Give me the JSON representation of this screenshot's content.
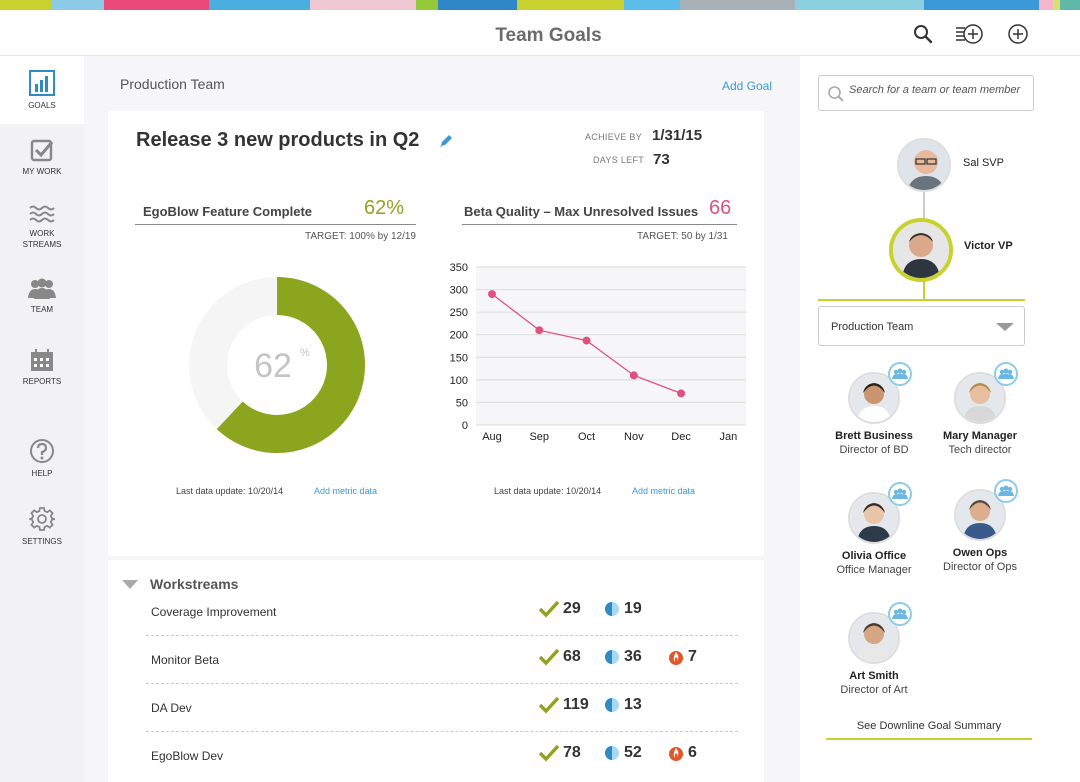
{
  "header": {
    "title": "Team Goals",
    "stripe_colors": [
      "#c7d22f",
      "#8ccbe8",
      "#e84a7a",
      "#4aaee0",
      "#f0c8d4",
      "#96c83c",
      "#2e88c8",
      "#c7d22f",
      "#5cbde8",
      "#a8b0b8",
      "#8cd0e0",
      "#3a9ad9",
      "#f4b6cc",
      "#d8e070",
      "#60b8a8"
    ]
  },
  "sidebar": {
    "items": [
      {
        "label": "GOALS",
        "icon": "bar-chart-icon"
      },
      {
        "label": "MY WORK",
        "icon": "checkbox-icon"
      },
      {
        "label": "WORK STREAMS",
        "icon": "waves-icon"
      },
      {
        "label": "TEAM",
        "icon": "people-icon"
      },
      {
        "label": "REPORTS",
        "icon": "calendar-icon"
      },
      {
        "label": "HELP",
        "icon": "question-icon"
      },
      {
        "label": "SETTINGS",
        "icon": "gear-icon"
      }
    ]
  },
  "main": {
    "team_name": "Production Team",
    "add_goal": "Add Goal",
    "goal": {
      "title": "Release 3 new products in Q2",
      "achieve_by_label": "ACHIEVE BY",
      "achieve_by": "1/31/15",
      "days_left_label": "DAYS LEFT",
      "days_left": "73"
    },
    "metric1": {
      "name": "EgoBlow Feature Complete",
      "pct": "62%",
      "target": "TARGET: 100% by 12/19",
      "center_value": "62",
      "center_unit": "%",
      "progress": 0.62,
      "color": "#8ca51e",
      "last_update": "Last data update: 10/20/14",
      "add_link": "Add metric data"
    },
    "metric2": {
      "name": "Beta Quality – Max Unresolved Issues",
      "value": "66",
      "target": "TARGET: 50 by 1/31",
      "color": "#e0527e",
      "last_update": "Last data update: 10/20/14",
      "add_link": "Add metric data"
    },
    "workstreams": {
      "title": "Workstreams",
      "rows": [
        {
          "name": "Coverage Improvement",
          "done": "29",
          "progress": "19",
          "issues": ""
        },
        {
          "name": "Monitor Beta",
          "done": "68",
          "progress": "36",
          "issues": "7"
        },
        {
          "name": "DA Dev",
          "done": "119",
          "progress": "13",
          "issues": ""
        },
        {
          "name": "EgoBlow Dev",
          "done": "78",
          "progress": "52",
          "issues": "6"
        }
      ]
    }
  },
  "chart_data": {
    "type": "line",
    "categories": [
      "Aug",
      "Sep",
      "Oct",
      "Nov",
      "Dec",
      "Jan"
    ],
    "values": [
      290,
      210,
      187,
      110,
      70,
      null
    ],
    "yticks": [
      0,
      50,
      100,
      150,
      200,
      250,
      300,
      350
    ],
    "ylim": [
      0,
      350
    ],
    "grid": true,
    "color": "#e0527e"
  },
  "right_panel": {
    "search_placeholder": "Search for a team or team member",
    "chain": [
      {
        "name": "Sal SVP"
      },
      {
        "name": "Victor VP"
      }
    ],
    "team_select": "Production Team",
    "members": [
      {
        "name": "Brett Business",
        "role": "Director of BD"
      },
      {
        "name": "Mary Manager",
        "role": "Tech director"
      },
      {
        "name": "Olivia Office",
        "role": "Office Manager"
      },
      {
        "name": "Owen Ops",
        "role": "Director of Ops"
      },
      {
        "name": "Art Smith",
        "role": "Director of Art"
      }
    ],
    "downline_link": "See Downline Goal Summary",
    "accent": "#c7d22f"
  }
}
